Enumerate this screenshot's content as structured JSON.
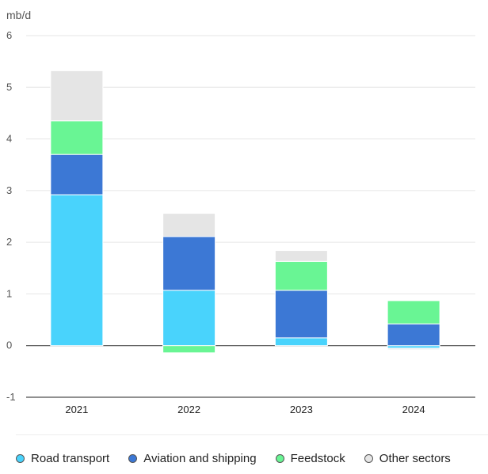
{
  "chart_data": {
    "type": "bar",
    "stacked": true,
    "unit_label": "mb/d",
    "categories": [
      "2021",
      "2022",
      "2023",
      "2024"
    ],
    "series": [
      {
        "name": "Road transport",
        "color": "#49d3fc",
        "values": [
          2.92,
          1.07,
          0.15,
          -0.05
        ]
      },
      {
        "name": "Aviation and shipping",
        "color": "#3c78d5",
        "values": [
          0.78,
          1.04,
          0.92,
          0.42
        ]
      },
      {
        "name": "Feedstock",
        "color": "#69f594",
        "values": [
          0.65,
          -0.14,
          0.56,
          0.45
        ]
      },
      {
        "name": "Other sectors",
        "color": "#e5e5e5",
        "values": [
          0.97,
          0.45,
          0.21,
          -0.03
        ]
      }
    ],
    "yticks": [
      "6",
      "5",
      "4",
      "3",
      "2",
      "1",
      "0",
      "-1"
    ],
    "ylim": [
      -1,
      6
    ],
    "grid": true,
    "legend_position": "bottom"
  }
}
